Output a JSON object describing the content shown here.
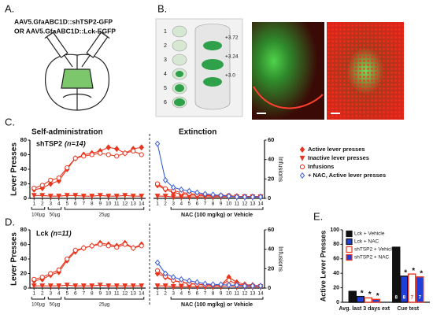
{
  "panels": {
    "A": "A.",
    "B": "B.",
    "C": "C.",
    "D": "D.",
    "E": "E."
  },
  "constructs": [
    "AAV5.GfaABC1D::shTSP2-GFP",
    "OR AAV5.GfaABC1D::Lck-EGFP"
  ],
  "slices": {
    "numbers": [
      "1",
      "2",
      "3",
      "4",
      "5",
      "6"
    ],
    "coords": [
      "+3.72",
      "+3.24",
      "+3.0"
    ]
  },
  "chart_data": [
    {
      "type": "line",
      "title": "Self-administration",
      "group": "shTSP2",
      "n_label": "(n=14)",
      "ylabel": "Lever Presses",
      "x": [
        1,
        2,
        3,
        4,
        5,
        6,
        7,
        8,
        9,
        10,
        11,
        12,
        13,
        14
      ],
      "xlim": [
        0.5,
        14.5
      ],
      "xticks": [
        1,
        2,
        3,
        4,
        5,
        6,
        7,
        8,
        9,
        10,
        11,
        12,
        13,
        14
      ],
      "ylim": [
        0,
        80
      ],
      "yticks": [
        0,
        20,
        40,
        60,
        80
      ],
      "series": [
        {
          "color": "#e8361f",
          "marker": "diamond",
          "values": [
            12,
            14,
            20,
            24,
            40,
            55,
            60,
            62,
            65,
            70,
            68,
            62,
            68,
            70
          ]
        },
        {
          "color": "#e8361f",
          "marker": "triangle",
          "values": [
            4,
            4,
            3,
            3,
            4,
            4,
            3,
            3,
            4,
            3,
            3,
            4,
            3,
            3
          ]
        },
        {
          "color": "#e8361f",
          "marker": "circle-open",
          "values": [
            14,
            18,
            25,
            28,
            42,
            55,
            58,
            60,
            62,
            60,
            58,
            62,
            65,
            60
          ]
        }
      ],
      "brackets": [
        {
          "label": "100µg",
          "from": 1,
          "to": 2
        },
        {
          "label": "50µg",
          "from": 3,
          "to": 4
        },
        {
          "label": "25µg",
          "from": 5,
          "to": 14
        }
      ]
    },
    {
      "type": "line",
      "title": "Extinction",
      "x": [
        1,
        2,
        3,
        4,
        5,
        6,
        7,
        8,
        9,
        10,
        11,
        12,
        13,
        14
      ],
      "xlim": [
        0.5,
        14.5
      ],
      "xticks": [
        1,
        2,
        3,
        4,
        5,
        6,
        7,
        8,
        9,
        10,
        11,
        12,
        13,
        14
      ],
      "ylim": [
        0,
        80
      ],
      "y2lim": [
        0,
        60
      ],
      "y2ticks": [
        0,
        20,
        40,
        60
      ],
      "y2label": "Infusions",
      "series": [
        {
          "name": "Active lever presses",
          "color": "#e8361f",
          "marker": "diamond",
          "values": [
            18,
            12,
            8,
            6,
            5,
            4,
            4,
            3,
            3,
            3,
            3,
            2,
            2,
            2
          ]
        },
        {
          "name": "Inactive lever presses",
          "color": "#e8361f",
          "marker": "triangle",
          "values": [
            3,
            3,
            2,
            2,
            2,
            2,
            2,
            2,
            2,
            2,
            2,
            2,
            2,
            2
          ]
        },
        {
          "name": "Infusions",
          "color": "#e8361f",
          "marker": "circle-open",
          "axis": "y2",
          "values": [
            15,
            10,
            8,
            6,
            5,
            4,
            4,
            3,
            3,
            3,
            2,
            2,
            2,
            2
          ]
        },
        {
          "name": "+ NAC, Active lever presses",
          "color": "#3a5fd8",
          "marker": "diamond-open",
          "values": [
            75,
            25,
            15,
            12,
            10,
            8,
            6,
            5,
            4,
            3,
            2,
            2,
            2,
            2
          ]
        }
      ],
      "brackets": [
        {
          "label": "NAC (100 mg/kg) or Vehicle",
          "from": 3,
          "to": 14
        }
      ]
    },
    {
      "type": "line",
      "group": "Lck",
      "n_label": "(n=11)",
      "ylabel": "Lever Presses",
      "x": [
        1,
        2,
        3,
        4,
        5,
        6,
        7,
        8,
        9,
        10,
        11,
        12,
        13,
        14
      ],
      "xlim": [
        0.5,
        14.5
      ],
      "xticks": [
        1,
        2,
        3,
        4,
        5,
        6,
        7,
        8,
        9,
        10,
        11,
        12,
        13,
        14
      ],
      "ylim": [
        0,
        80
      ],
      "yticks": [
        0,
        20,
        40,
        60,
        80
      ],
      "series": [
        {
          "color": "#e8361f",
          "marker": "diamond",
          "values": [
            10,
            12,
            18,
            22,
            38,
            50,
            55,
            58,
            62,
            60,
            58,
            62,
            55,
            60
          ]
        },
        {
          "color": "#e8361f",
          "marker": "triangle",
          "values": [
            3,
            3,
            3,
            3,
            4,
            3,
            3,
            3,
            4,
            3,
            3,
            3,
            3,
            3
          ]
        },
        {
          "color": "#e8361f",
          "marker": "circle-open",
          "values": [
            12,
            15,
            20,
            25,
            40,
            52,
            55,
            58,
            60,
            58,
            56,
            60,
            55,
            58
          ]
        }
      ],
      "brackets": [
        {
          "label": "100µg",
          "from": 1,
          "to": 2
        },
        {
          "label": "50µg",
          "from": 3,
          "to": 4
        },
        {
          "label": "25µg",
          "from": 5,
          "to": 14
        }
      ]
    },
    {
      "type": "line",
      "x": [
        1,
        2,
        3,
        4,
        5,
        6,
        7,
        8,
        9,
        10,
        11,
        12,
        13,
        14
      ],
      "xlim": [
        0.5,
        14.5
      ],
      "xticks": [
        1,
        2,
        3,
        4,
        5,
        6,
        7,
        8,
        9,
        10,
        11,
        12,
        13,
        14
      ],
      "ylim": [
        0,
        80
      ],
      "y2lim": [
        0,
        60
      ],
      "y2ticks": [
        0,
        20,
        40,
        60
      ],
      "y2label": "Infusions",
      "series": [
        {
          "color": "#e8361f",
          "marker": "diamond",
          "values": [
            20,
            15,
            10,
            8,
            6,
            5,
            5,
            4,
            4,
            15,
            8,
            5,
            4,
            3
          ]
        },
        {
          "color": "#e8361f",
          "marker": "triangle",
          "values": [
            3,
            3,
            2,
            2,
            2,
            2,
            2,
            2,
            2,
            3,
            2,
            2,
            2,
            2
          ]
        },
        {
          "color": "#e8361f",
          "marker": "circle-open",
          "axis": "y2",
          "values": [
            18,
            12,
            8,
            6,
            5,
            4,
            3,
            3,
            3,
            8,
            4,
            3,
            2,
            2
          ]
        },
        {
          "color": "#3a5fd8",
          "marker": "diamond-open",
          "values": [
            35,
            20,
            15,
            12,
            10,
            8,
            6,
            5,
            5,
            4,
            4,
            3,
            3,
            3
          ]
        }
      ],
      "brackets": [
        {
          "label": "NAC (100 mg/kg) or Vehicle",
          "from": 3,
          "to": 14
        }
      ]
    },
    {
      "type": "bar",
      "ylabel": "Active Lever Presses",
      "categories": [
        "Avg. last 3 days ext",
        "Cue test"
      ],
      "ylim": [
        0,
        100
      ],
      "yticks": [
        0,
        20,
        40,
        60,
        80,
        100
      ],
      "series": [
        {
          "name": "Lck + Vehicle",
          "color": "#111111",
          "edge": "#111111",
          "values": [
            15,
            76
          ],
          "n": "8",
          "significance": [
            null,
            null
          ]
        },
        {
          "name": "Lck + NAC",
          "color": "#1f3fd6",
          "edge": "#111111",
          "values": [
            8,
            36
          ],
          "n": "8",
          "significance": [
            "*",
            "*"
          ]
        },
        {
          "name": "shTSP2 + Vehicle",
          "color": "#ffffff",
          "edge": "#e8361f",
          "values": [
            6,
            39
          ],
          "n": "7",
          "significance": [
            "*",
            "*"
          ]
        },
        {
          "name": "shTSP2 + NAC",
          "color": "#1f3fd6",
          "edge": "#e8361f",
          "values": [
            4,
            35
          ],
          "n": "7",
          "significance": [
            "*",
            "*"
          ]
        }
      ]
    }
  ]
}
